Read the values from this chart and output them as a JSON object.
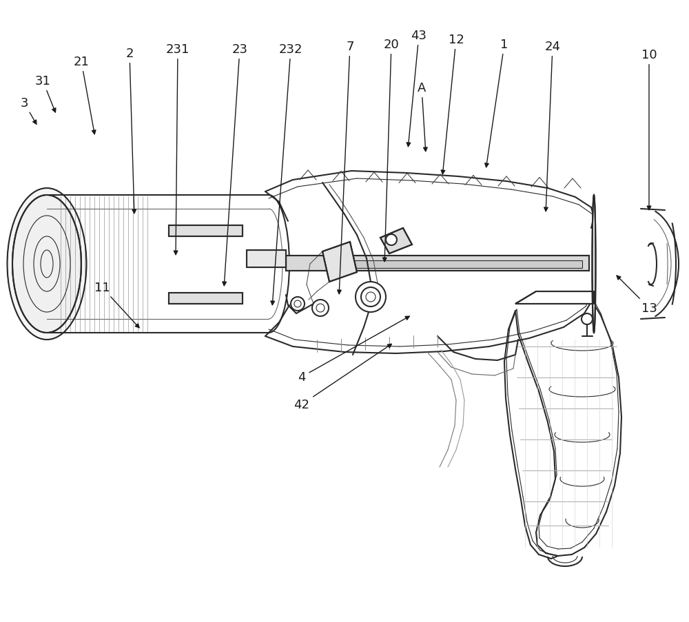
{
  "bg_color": "#ffffff",
  "line_color": "#2a2a2a",
  "line_width": 1.5,
  "thin_line": 0.8,
  "figsize": [
    10.0,
    9.04
  ],
  "dpi": 100,
  "labels_info": [
    [
      "3",
      35,
      150,
      55,
      185
    ],
    [
      "31",
      62,
      118,
      82,
      168
    ],
    [
      "21",
      118,
      90,
      138,
      200
    ],
    [
      "2",
      188,
      78,
      195,
      315
    ],
    [
      "231",
      258,
      72,
      255,
      375
    ],
    [
      "23",
      348,
      72,
      325,
      420
    ],
    [
      "232",
      422,
      72,
      395,
      448
    ],
    [
      "7",
      508,
      68,
      492,
      432
    ],
    [
      "20",
      568,
      65,
      558,
      385
    ],
    [
      "43",
      608,
      52,
      592,
      218
    ],
    [
      "12",
      662,
      58,
      642,
      258
    ],
    [
      "A",
      612,
      128,
      618,
      225
    ],
    [
      "1",
      732,
      65,
      705,
      248
    ],
    [
      "24",
      802,
      68,
      792,
      312
    ],
    [
      "10",
      942,
      80,
      942,
      310
    ],
    [
      "11",
      148,
      418,
      205,
      480
    ],
    [
      "4",
      438,
      548,
      598,
      458
    ],
    [
      "42",
      438,
      588,
      572,
      498
    ],
    [
      "13",
      942,
      448,
      892,
      398
    ]
  ]
}
